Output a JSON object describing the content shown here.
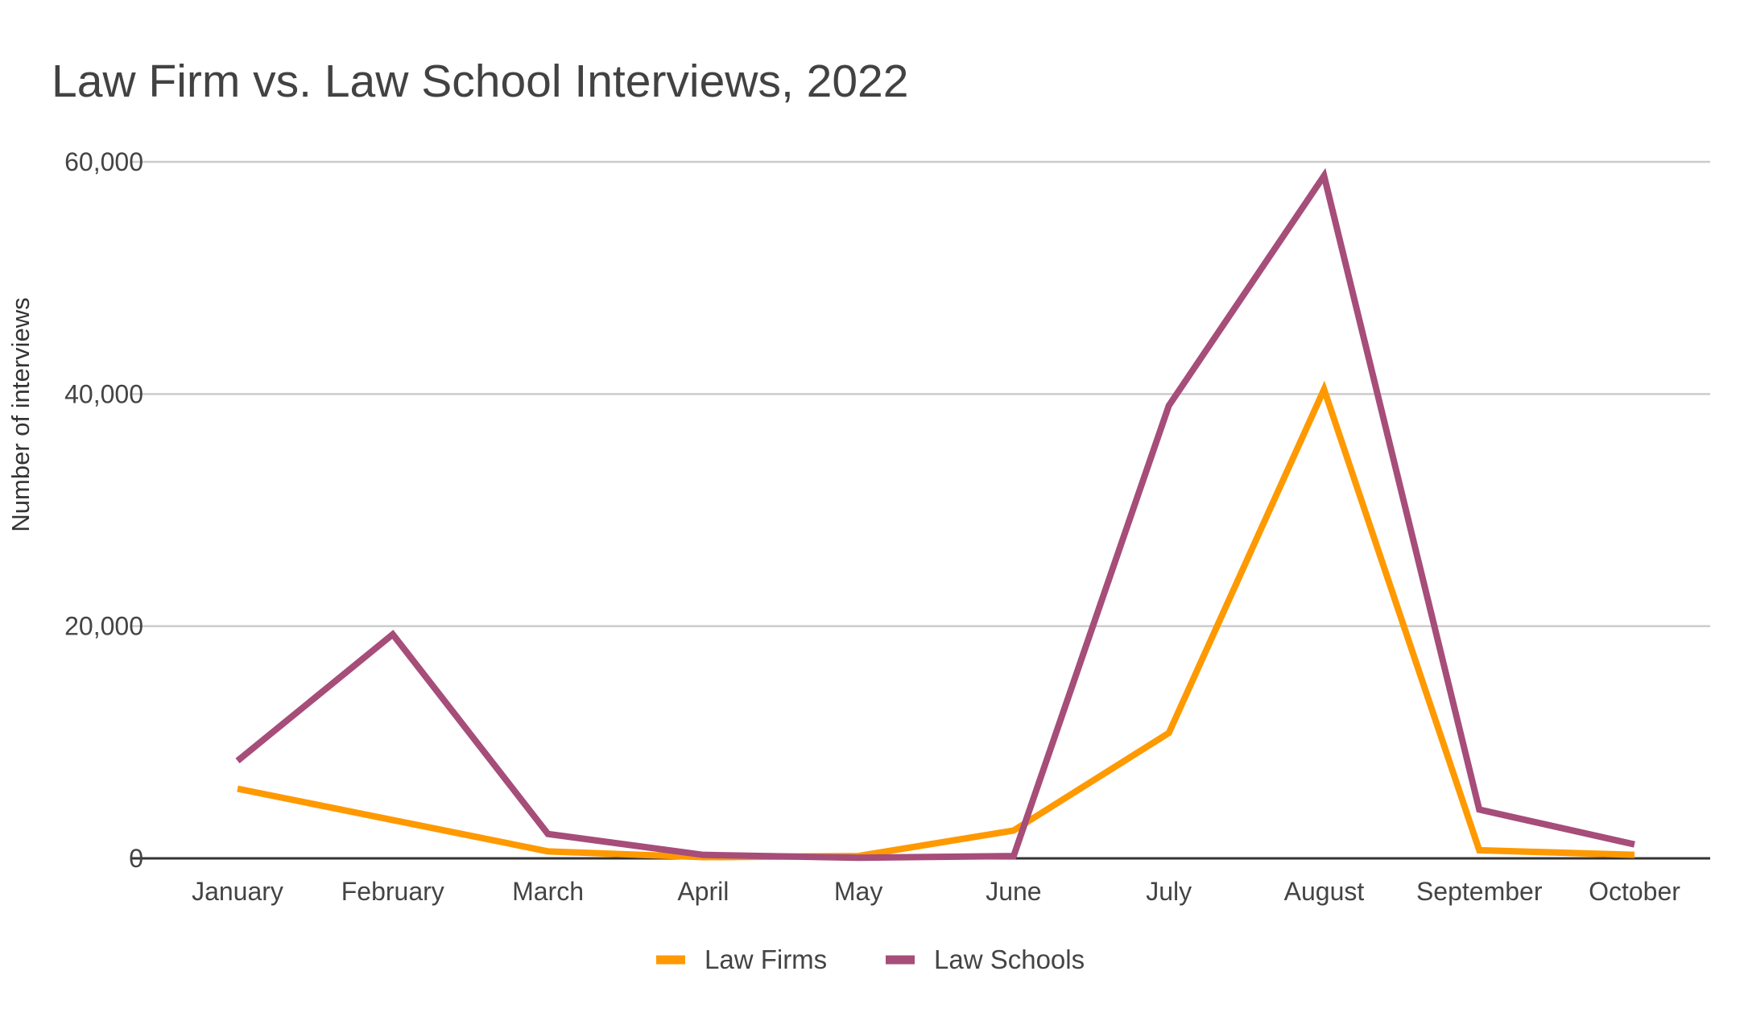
{
  "chart_data": {
    "type": "line",
    "title": "Law Firm vs. Law School Interviews, 2022",
    "xlabel": "",
    "ylabel": "Number of interviews",
    "ylim": [
      0,
      60000
    ],
    "yticks": [
      0,
      20000,
      40000,
      60000
    ],
    "ytick_labels": [
      "0",
      "20,000",
      "40,000",
      "60,000"
    ],
    "grid": true,
    "legend_position": "bottom",
    "categories": [
      "January",
      "February",
      "March",
      "April",
      "May",
      "June",
      "July",
      "August",
      "September",
      "October"
    ],
    "series": [
      {
        "name": "Law Firms",
        "color": "#ff9900",
        "values": [
          6000,
          3300,
          600,
          100,
          200,
          2400,
          10800,
          40400,
          700,
          300
        ]
      },
      {
        "name": "Law Schools",
        "color": "#a64d79",
        "values": [
          8400,
          19300,
          2100,
          300,
          50,
          200,
          39000,
          58800,
          4200,
          1200
        ]
      }
    ]
  }
}
